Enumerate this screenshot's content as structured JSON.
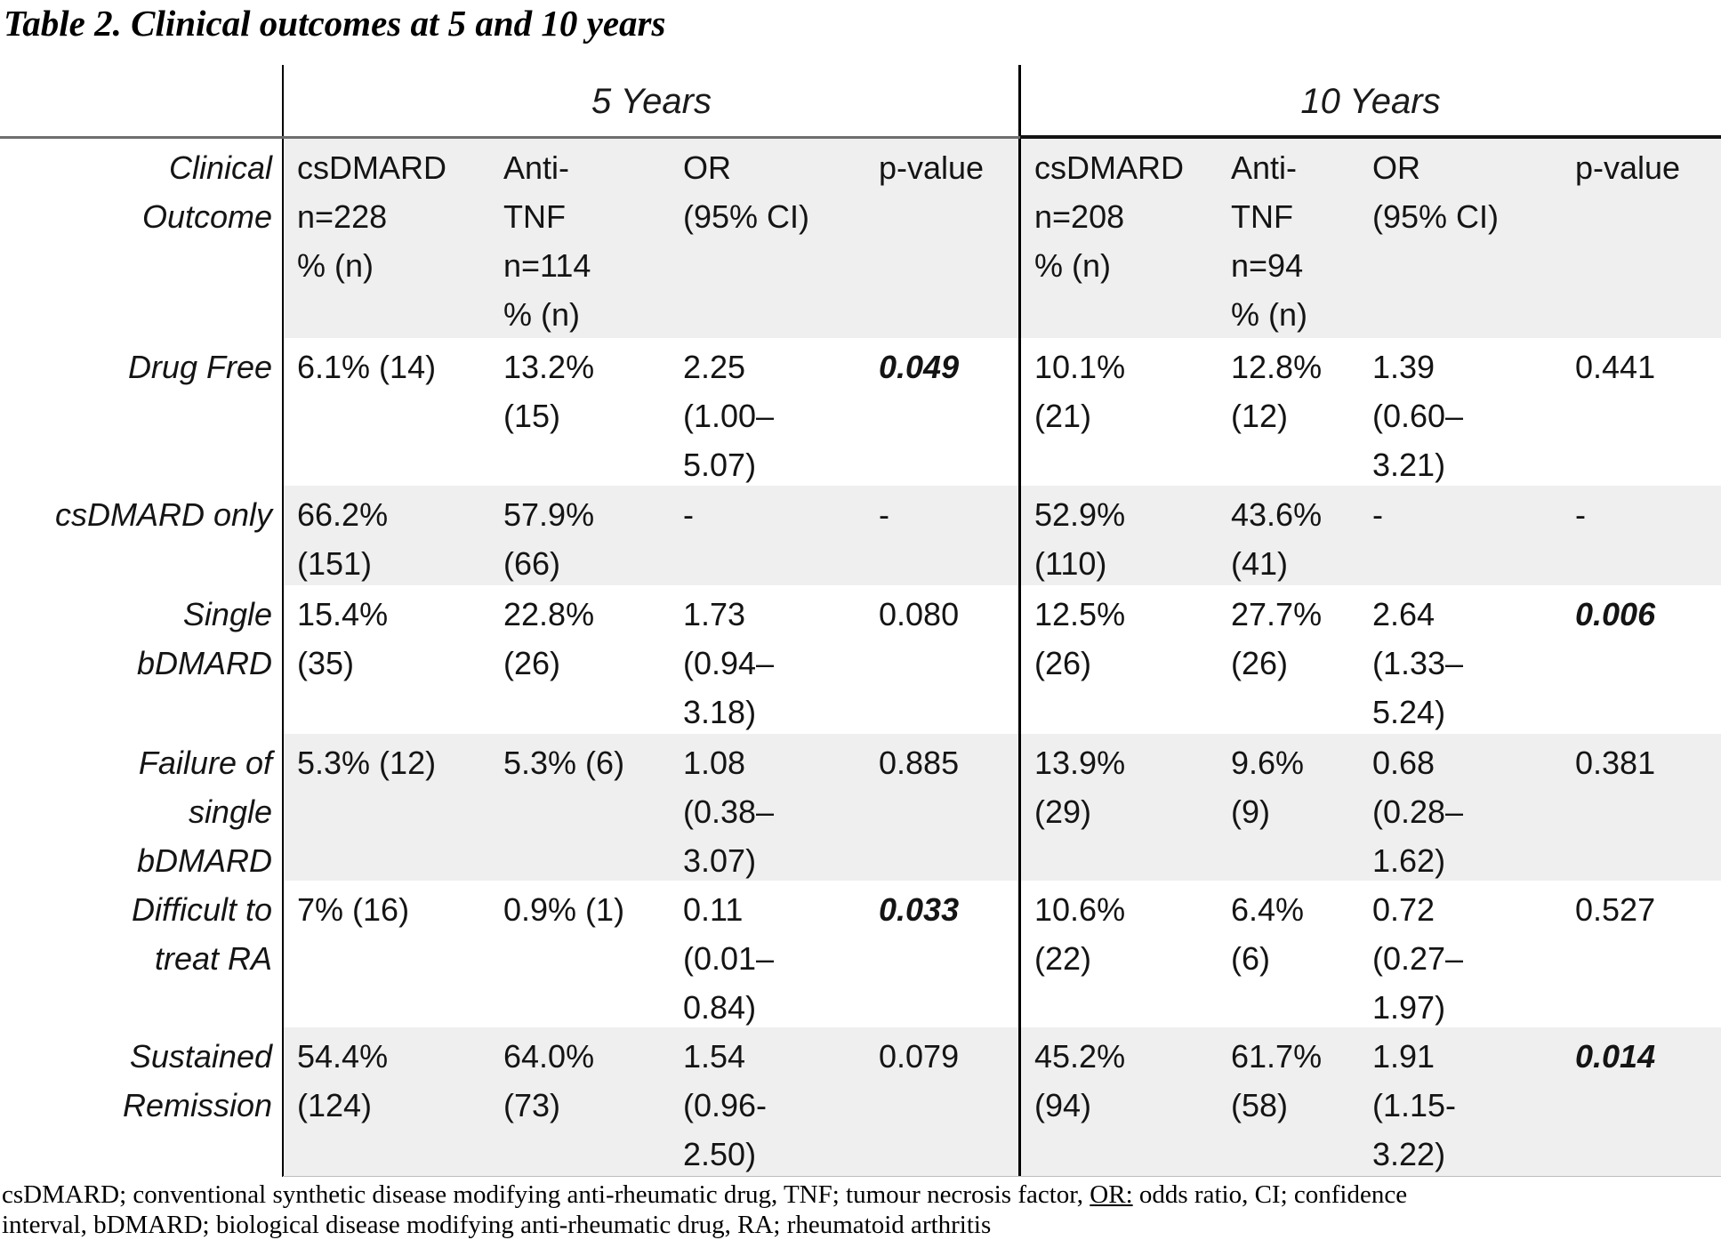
{
  "title": "Table 2. Clinical outcomes at 5 and 10 years",
  "group_headers": [
    "5 Years",
    "10 Years"
  ],
  "colors": {
    "row_shade": "#f0efef",
    "rule": "#000000"
  },
  "header": {
    "corner": "Clinical\nOutcome",
    "y5_csdmard": "csDMARD\nn=228\n% (n)",
    "y5_antitnf": "Anti-\nTNF\nn=114\n% (n)",
    "y5_or": "OR\n(95% CI)",
    "y5_p": "p-value",
    "y10_csdmard": "csDMARD\nn=208\n% (n)",
    "y10_antitnf": "Anti-\nTNF\nn=94\n% (n)",
    "y10_or": "OR\n(95% CI)",
    "y10_p": "p-value"
  },
  "rows": [
    {
      "label": "Drug Free",
      "p5_bold": true,
      "p10_bold": false,
      "c": [
        "6.1% (14)",
        "13.2%\n(15)",
        "2.25\n(1.00–\n5.07)",
        "0.049",
        "10.1%\n(21)",
        "12.8%\n(12)",
        "1.39\n(0.60–\n3.21)",
        "0.441"
      ]
    },
    {
      "label": "csDMARD only",
      "p5_bold": false,
      "p10_bold": false,
      "c": [
        "66.2%\n(151)",
        "57.9%\n(66)",
        "-",
        "-",
        "52.9%\n(110)",
        "43.6%\n(41)",
        "-",
        "-"
      ]
    },
    {
      "label": "Single\nbDMARD",
      "p5_bold": false,
      "p10_bold": true,
      "c": [
        "15.4%\n(35)",
        "22.8%\n(26)",
        "1.73\n(0.94–\n3.18)",
        "0.080",
        "12.5%\n(26)",
        "27.7%\n(26)",
        "2.64\n(1.33–\n5.24)",
        "0.006"
      ]
    },
    {
      "label": "Failure of\nsingle\nbDMARD",
      "p5_bold": false,
      "p10_bold": false,
      "c": [
        "5.3% (12)",
        "5.3% (6)",
        "1.08\n(0.38–\n3.07)",
        "0.885",
        "13.9%\n(29)",
        "9.6%\n(9)",
        "0.68\n(0.28–\n1.62)",
        "0.381"
      ]
    },
    {
      "label": "Difficult to\ntreat RA",
      "p5_bold": true,
      "p10_bold": false,
      "c": [
        "7% (16)",
        "0.9% (1)",
        "0.11\n(0.01–\n0.84)",
        "0.033",
        "10.6%\n(22)",
        "6.4%\n(6)",
        "0.72\n(0.27–\n1.97)",
        "0.527"
      ]
    },
    {
      "label": "Sustained\nRemission",
      "p5_bold": false,
      "p10_bold": true,
      "c": [
        "54.4%\n(124)",
        "64.0%\n(73)",
        "1.54\n(0.96-\n2.50)",
        "0.079",
        "45.2%\n(94)",
        "61.7%\n(58)",
        "1.91\n(1.15-\n3.22)",
        "0.014"
      ]
    }
  ],
  "footnote": {
    "part1": "csDMARD; conventional synthetic disease modifying anti-rheumatic drug, TNF; tumour necrosis factor, ",
    "underlined": "OR:",
    "part2": " odds ratio, CI; confidence",
    "line2": "interval, bDMARD; biological disease modifying anti-rheumatic drug, RA; rheumatoid arthritis"
  }
}
